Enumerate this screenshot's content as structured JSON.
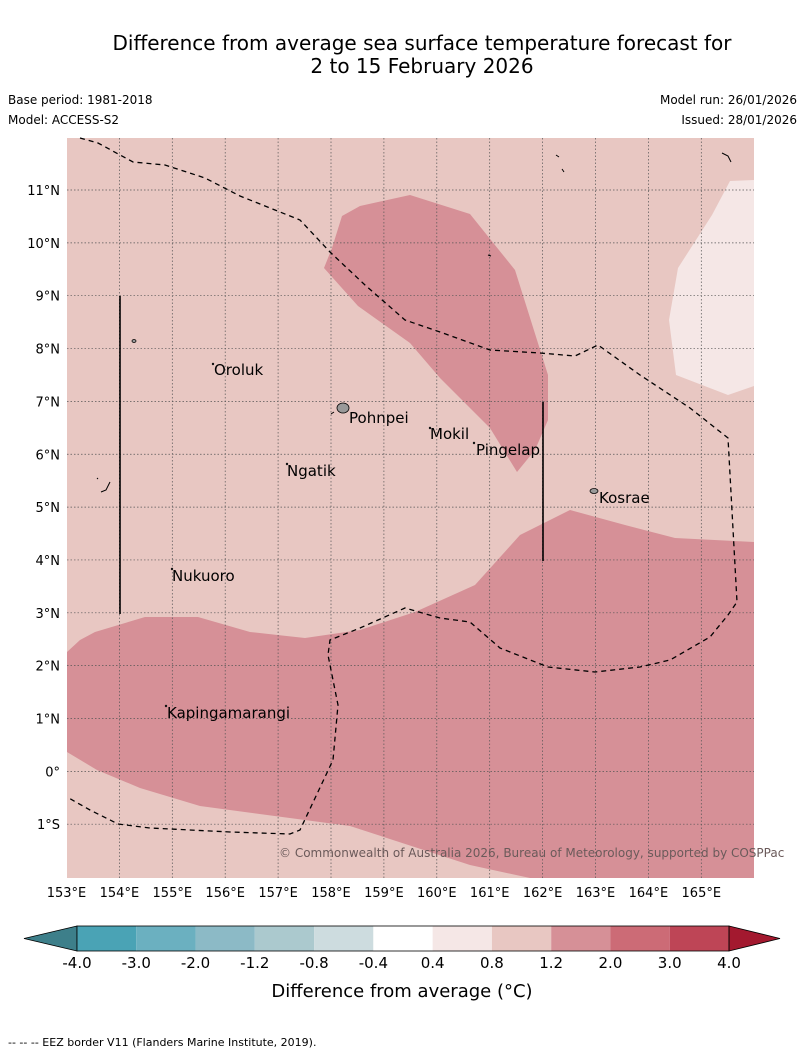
{
  "title_line1": "Difference from average sea surface temperature forecast for",
  "title_line2": "2 to 15 February 2026",
  "base_period": "Base period: 1981-2018",
  "model": "Model: ACCESS-S2",
  "model_run": "Model run: 26/01/2026",
  "issued": "Issued: 28/01/2026",
  "lon_labels": [
    "153°E",
    "154°E",
    "155°E",
    "156°E",
    "157°E",
    "158°E",
    "159°E",
    "160°E",
    "161°E",
    "162°E",
    "163°E",
    "164°E",
    "165°E"
  ],
  "lat_labels": [
    "11°N",
    "10°N",
    "9°N",
    "8°N",
    "7°N",
    "6°N",
    "5°N",
    "4°N",
    "3°N",
    "2°N",
    "1°N",
    "0°",
    "1°S"
  ],
  "places": [
    "Oroluk",
    "Pohnpei",
    "Mokil",
    "Pingelap",
    "Ngatik",
    "Kosrae",
    "Nukuoro",
    "Kapingamarangi"
  ],
  "copyright": "© Commonwealth of Australia 2026, Bureau of Meteorology, supported by COSPPac",
  "colorbar_ticks": [
    "-4.0",
    "-3.0",
    "-2.0",
    "-1.2",
    "-0.8",
    "-0.4",
    "0.4",
    "0.8",
    "1.2",
    "2.0",
    "3.0",
    "4.0"
  ],
  "colorbar_label": "Difference from average (°C)",
  "colorbar_colors": [
    "#3d7f8a",
    "#4aa3b5",
    "#6bb0c0",
    "#8cbac6",
    "#abc9ce",
    "#cddcdf",
    "#ffffff",
    "#f5e7e6",
    "#e8c7c2",
    "#d69097",
    "#cc6b76",
    "#be4556",
    "#a3192f"
  ],
  "footnote": "-- --  -- EEZ border V11 (Flanders Marine Institute, 2019)."
}
